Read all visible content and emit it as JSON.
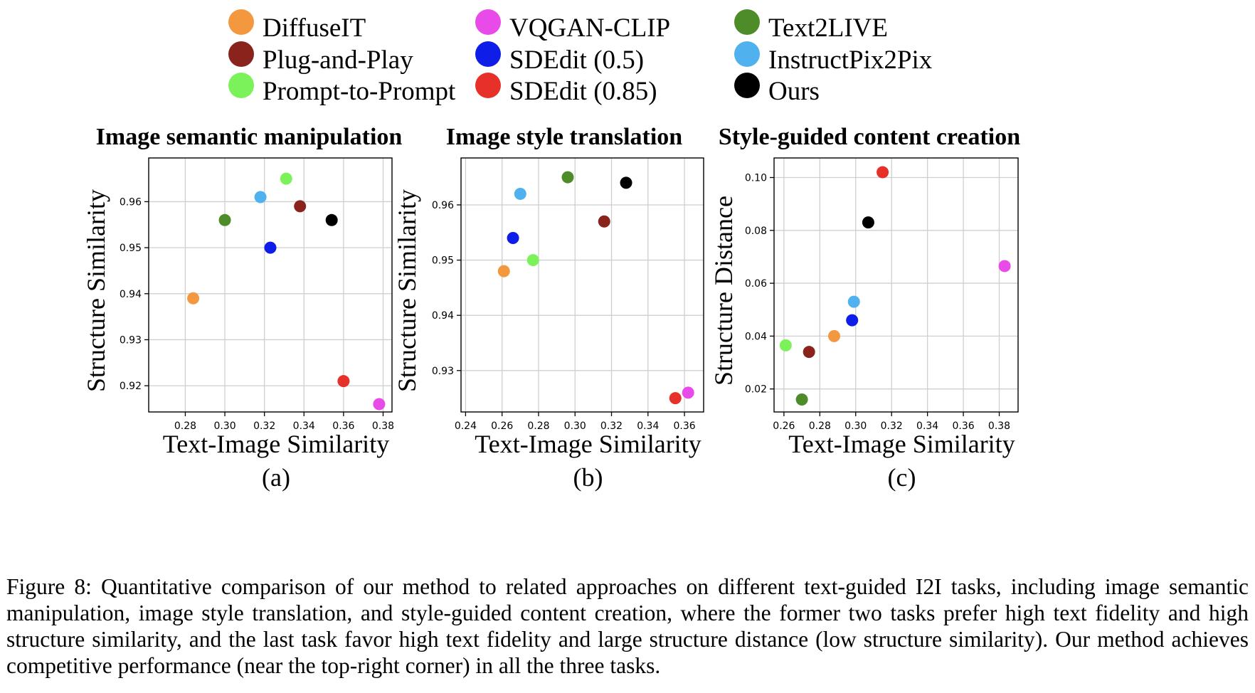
{
  "legend": [
    {
      "name": "DiffuseIT",
      "color": "#F4983F"
    },
    {
      "name": "Plug-and-Play",
      "color": "#8A231C"
    },
    {
      "name": "Prompt-to-Prompt",
      "color": "#7CF25A"
    },
    {
      "name": "VQGAN-CLIP",
      "color": "#E84BE8"
    },
    {
      "name": "SDEdit (0.5)",
      "color": "#0E1EE8"
    },
    {
      "name": "SDEdit (0.85)",
      "color": "#E8302A"
    },
    {
      "name": "Text2LIVE",
      "color": "#4E8C2A"
    },
    {
      "name": "InstructPix2Pix",
      "color": "#4FB2EE"
    },
    {
      "name": "Ours",
      "color": "#000000"
    }
  ],
  "chart_data": [
    {
      "type": "scatter",
      "title": "Image semantic manipulation",
      "panel": "(a)",
      "xlabel": "Text-Image Similarity",
      "ylabel": "Structure Similarity",
      "xlim": [
        0.2615,
        0.3845
      ],
      "ylim": [
        0.9143,
        0.9695
      ],
      "xticks": [
        "0.28",
        "0.30",
        "0.32",
        "0.34",
        "0.36",
        "0.38"
      ],
      "yticks": [
        "0.92",
        "0.93",
        "0.94",
        "0.95",
        "0.96"
      ],
      "grid": true,
      "points": [
        {
          "series": "DiffuseIT",
          "x": 0.284,
          "y": 0.939
        },
        {
          "series": "Plug-and-Play",
          "x": 0.338,
          "y": 0.959
        },
        {
          "series": "Prompt-to-Prompt",
          "x": 0.331,
          "y": 0.965
        },
        {
          "series": "VQGAN-CLIP",
          "x": 0.378,
          "y": 0.916
        },
        {
          "series": "SDEdit (0.5)",
          "x": 0.323,
          "y": 0.95
        },
        {
          "series": "SDEdit (0.85)",
          "x": 0.36,
          "y": 0.921
        },
        {
          "series": "Text2LIVE",
          "x": 0.3,
          "y": 0.956
        },
        {
          "series": "InstructPix2Pix",
          "x": 0.318,
          "y": 0.961
        },
        {
          "series": "Ours",
          "x": 0.354,
          "y": 0.956
        }
      ]
    },
    {
      "type": "scatter",
      "title": "Image style translation",
      "panel": "(b)",
      "xlabel": "Text-Image Similarity",
      "ylabel": "Structure Similarity",
      "xlim": [
        0.2375,
        0.3705
      ],
      "ylim": [
        0.9225,
        0.9685
      ],
      "xticks": [
        "0.24",
        "0.26",
        "0.28",
        "0.30",
        "0.32",
        "0.34",
        "0.36"
      ],
      "yticks": [
        "0.93",
        "0.94",
        "0.95",
        "0.96"
      ],
      "grid": true,
      "points": [
        {
          "series": "DiffuseIT",
          "x": 0.261,
          "y": 0.948
        },
        {
          "series": "Plug-and-Play",
          "x": 0.316,
          "y": 0.957
        },
        {
          "series": "Prompt-to-Prompt",
          "x": 0.277,
          "y": 0.95
        },
        {
          "series": "VQGAN-CLIP",
          "x": 0.362,
          "y": 0.926
        },
        {
          "series": "SDEdit (0.5)",
          "x": 0.266,
          "y": 0.954
        },
        {
          "series": "SDEdit (0.85)",
          "x": 0.355,
          "y": 0.925
        },
        {
          "series": "Text2LIVE",
          "x": 0.296,
          "y": 0.965
        },
        {
          "series": "InstructPix2Pix",
          "x": 0.27,
          "y": 0.962
        },
        {
          "series": "Ours",
          "x": 0.328,
          "y": 0.964
        }
      ]
    },
    {
      "type": "scatter",
      "title": "Style-guided content creation",
      "panel": "(c)",
      "xlabel": "Text-Image Similarity",
      "ylabel": "Structure Distance",
      "xlim": [
        0.2545,
        0.3905
      ],
      "ylim": [
        0.0113,
        0.1074
      ],
      "xticks": [
        "0.26",
        "0.28",
        "0.30",
        "0.32",
        "0.34",
        "0.36",
        "0.38"
      ],
      "yticks": [
        "0.02",
        "0.04",
        "0.06",
        "0.08",
        "0.10"
      ],
      "grid": true,
      "points": [
        {
          "series": "DiffuseIT",
          "x": 0.288,
          "y": 0.04
        },
        {
          "series": "Plug-and-Play",
          "x": 0.274,
          "y": 0.034
        },
        {
          "series": "Prompt-to-Prompt",
          "x": 0.261,
          "y": 0.0365
        },
        {
          "series": "VQGAN-CLIP",
          "x": 0.383,
          "y": 0.0665
        },
        {
          "series": "SDEdit (0.5)",
          "x": 0.298,
          "y": 0.046
        },
        {
          "series": "SDEdit (0.85)",
          "x": 0.315,
          "y": 0.102
        },
        {
          "series": "Text2LIVE",
          "x": 0.27,
          "y": 0.016
        },
        {
          "series": "InstructPix2Pix",
          "x": 0.299,
          "y": 0.053
        },
        {
          "series": "Ours",
          "x": 0.307,
          "y": 0.083
        }
      ]
    }
  ],
  "caption": {
    "text": "Figure 8: Quantitative comparison of our method to related approaches on different text-guided I2I tasks, including image semantic manipulation, image style translation, and style-guided content creation, where the former two tasks prefer high text fidelity and high structure similarity, and the last task favor high text fidelity and large structure distance (low structure similarity). Our method achieves competitive performance (near the top-right corner) in all the three tasks."
  }
}
